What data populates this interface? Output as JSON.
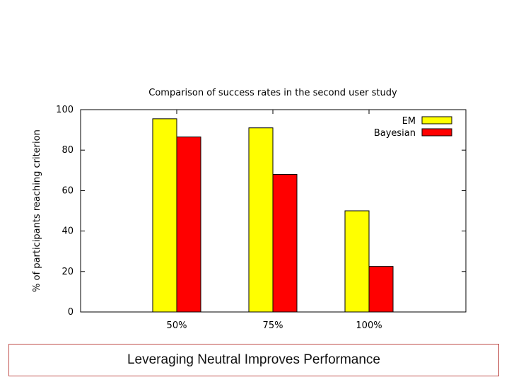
{
  "chart_data": {
    "type": "bar",
    "title": "Comparison of success rates in the second user study",
    "xlabel": "",
    "ylabel": "% of participants reaching criterion",
    "categories": [
      "50%",
      "75%",
      "100%"
    ],
    "series": [
      {
        "name": "EM",
        "values": [
          95.5,
          91,
          50
        ],
        "color": "#ffff00"
      },
      {
        "name": "Bayesian",
        "values": [
          86.5,
          68,
          22.5
        ],
        "color": "#ff0000"
      }
    ],
    "ylim": [
      0,
      100
    ],
    "yticks": [
      0,
      20,
      40,
      60,
      80,
      100
    ],
    "grid": false,
    "legend": "top-right"
  },
  "caption": "Leveraging Neutral Improves Performance"
}
